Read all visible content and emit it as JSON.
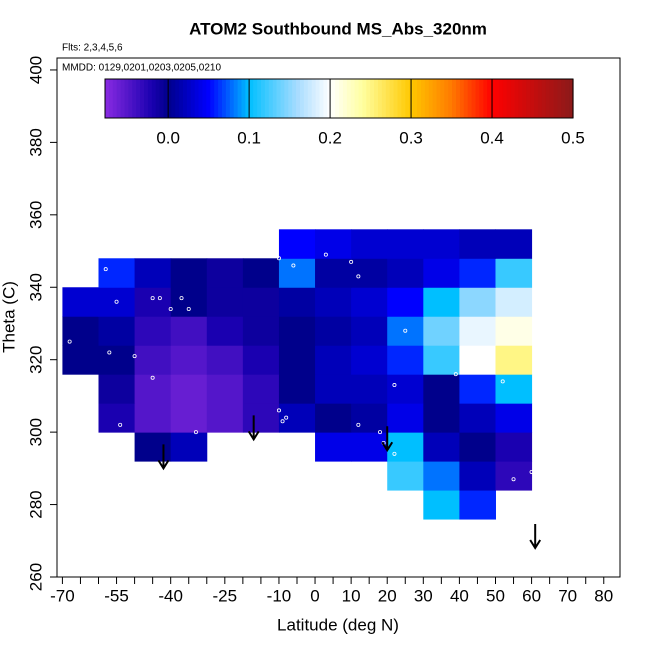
{
  "chart_data": {
    "type": "heatmap",
    "title": "ATOM2 Southbound MS_Abs_320nm",
    "subtitle": "Flts: 2,3,4,5,6",
    "annotation": "MMDD: 0129,0201,0203,0205,0210",
    "xlabel": "Latitude (deg N)",
    "ylabel": "Theta (C)",
    "xlim": [
      -71.5,
      84.5
    ],
    "ylim": [
      260,
      403.3
    ],
    "xticks": [
      -70,
      -55,
      -40,
      -25,
      -10,
      0,
      10,
      20,
      30,
      40,
      50,
      60,
      70,
      80
    ],
    "xminor_ticks": [
      -65,
      -60,
      -50,
      -45,
      -35,
      -30,
      -20,
      -15,
      -5,
      5,
      15,
      25,
      35,
      45,
      55,
      65,
      75
    ],
    "yticks": [
      260,
      280,
      300,
      320,
      340,
      360,
      380,
      400
    ],
    "clim": [
      -0.078,
      0.5
    ],
    "cticks": [
      {
        "value": 0,
        "label": "0.0"
      },
      0.1,
      0.2,
      0.3,
      0.4,
      0.5
    ],
    "colormap": [
      {
        "value": -0.078,
        "color": "#8a2be2"
      },
      {
        "value": -0.02,
        "color": "#1a00b0"
      },
      {
        "value": 0.0,
        "color": "#00008b"
      },
      {
        "value": 0.05,
        "color": "#0000ff"
      },
      {
        "value": 0.1,
        "color": "#00bfff"
      },
      {
        "value": 0.16,
        "color": "#a8dcff"
      },
      {
        "value": 0.2,
        "color": "#ffffff"
      },
      {
        "value": 0.24,
        "color": "#ffffa0"
      },
      {
        "value": 0.3,
        "color": "#ffc800"
      },
      {
        "value": 0.35,
        "color": "#ff7a00"
      },
      {
        "value": 0.4,
        "color": "#ff0000"
      },
      {
        "value": 0.5,
        "color": "#8b1a1a"
      }
    ],
    "x_edges": [
      -70,
      -60,
      -50,
      -40,
      -30,
      -20,
      -10,
      0,
      10,
      20,
      30,
      40,
      50,
      60
    ],
    "y_edges": [
      276,
      284,
      292,
      300,
      308,
      316,
      324,
      332,
      340,
      348,
      356
    ],
    "z": [
      [
        null,
        null,
        null,
        null,
        null,
        null,
        null,
        null,
        null,
        null,
        0.1,
        0.06,
        null
      ],
      [
        null,
        null,
        null,
        null,
        null,
        null,
        null,
        null,
        null,
        0.12,
        0.08,
        0.02,
        -0.03
      ],
      [
        null,
        null,
        0.0,
        0.02,
        null,
        null,
        null,
        0.04,
        0.04,
        0.1,
        0.02,
        0.0,
        -0.02
      ],
      [
        null,
        -0.02,
        -0.05,
        -0.06,
        -0.05,
        -0.03,
        0.02,
        0.0,
        0.01,
        0.04,
        0.0,
        0.02,
        0.04
      ],
      [
        null,
        -0.01,
        -0.05,
        -0.06,
        -0.05,
        -0.03,
        0.0,
        0.02,
        0.02,
        0.03,
        0.0,
        0.06,
        0.1
      ],
      [
        0.0,
        0.0,
        -0.04,
        -0.05,
        -0.04,
        -0.02,
        0.0,
        0.02,
        0.03,
        0.06,
        0.12,
        0.2,
        0.25
      ],
      [
        0.0,
        0.01,
        -0.03,
        -0.04,
        -0.02,
        -0.01,
        0.0,
        0.01,
        0.02,
        0.08,
        0.14,
        0.19,
        0.21
      ],
      [
        0.03,
        0.03,
        -0.02,
        0.0,
        -0.01,
        -0.01,
        0.01,
        0.02,
        0.03,
        0.05,
        0.1,
        0.15,
        0.18
      ],
      [
        null,
        0.06,
        0.02,
        0.0,
        -0.01,
        0.0,
        0.08,
        0.01,
        0.01,
        0.02,
        0.04,
        0.06,
        0.12
      ],
      [
        null,
        null,
        null,
        null,
        null,
        null,
        0.05,
        0.04,
        0.03,
        0.03,
        0.03,
        0.02,
        0.02
      ]
    ],
    "samples": {
      "x": [
        -68,
        -57,
        -50,
        -55,
        -45,
        -43,
        -37,
        -40,
        -35,
        -45,
        -54,
        -33,
        -10,
        -9,
        -8,
        -11,
        -10,
        -6,
        3,
        10,
        12,
        25,
        22,
        18,
        19,
        12,
        22,
        39,
        52,
        55,
        60,
        -58
      ],
      "y": [
        325,
        322,
        321,
        336,
        337,
        337,
        337,
        334,
        334,
        315,
        302,
        300,
        306,
        303,
        304,
        351,
        348,
        346,
        349,
        347,
        343,
        328,
        313,
        300,
        297,
        302,
        294,
        316,
        314,
        287,
        289,
        345
      ]
    },
    "arrows": {
      "x": [
        -42,
        -17,
        20,
        61
      ],
      "y": [
        290,
        298,
        295,
        268
      ]
    }
  }
}
